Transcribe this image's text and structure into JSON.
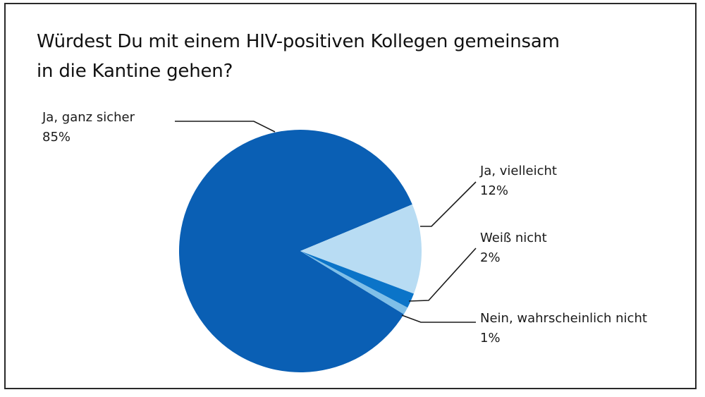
{
  "chart_data": {
    "type": "pie",
    "title": "Würdest Du mit einem HIV-positiven Kollegen gemeinsam in die Kantine gehen?",
    "slices": [
      {
        "label": "Ja, ganz sicher",
        "value_label": "85%",
        "value": 85,
        "color": "#0a5fb4"
      },
      {
        "label": "Ja, vielleicht",
        "value_label": "12%",
        "value": 12,
        "color": "#b8dcf3"
      },
      {
        "label": "Weiß nicht",
        "value_label": "2%",
        "value": 2,
        "color": "#0b74c8"
      },
      {
        "label": "Nein, wahrscheinlich nicht",
        "value_label": "1%",
        "value": 1,
        "color": "#7fbfe8"
      }
    ]
  }
}
